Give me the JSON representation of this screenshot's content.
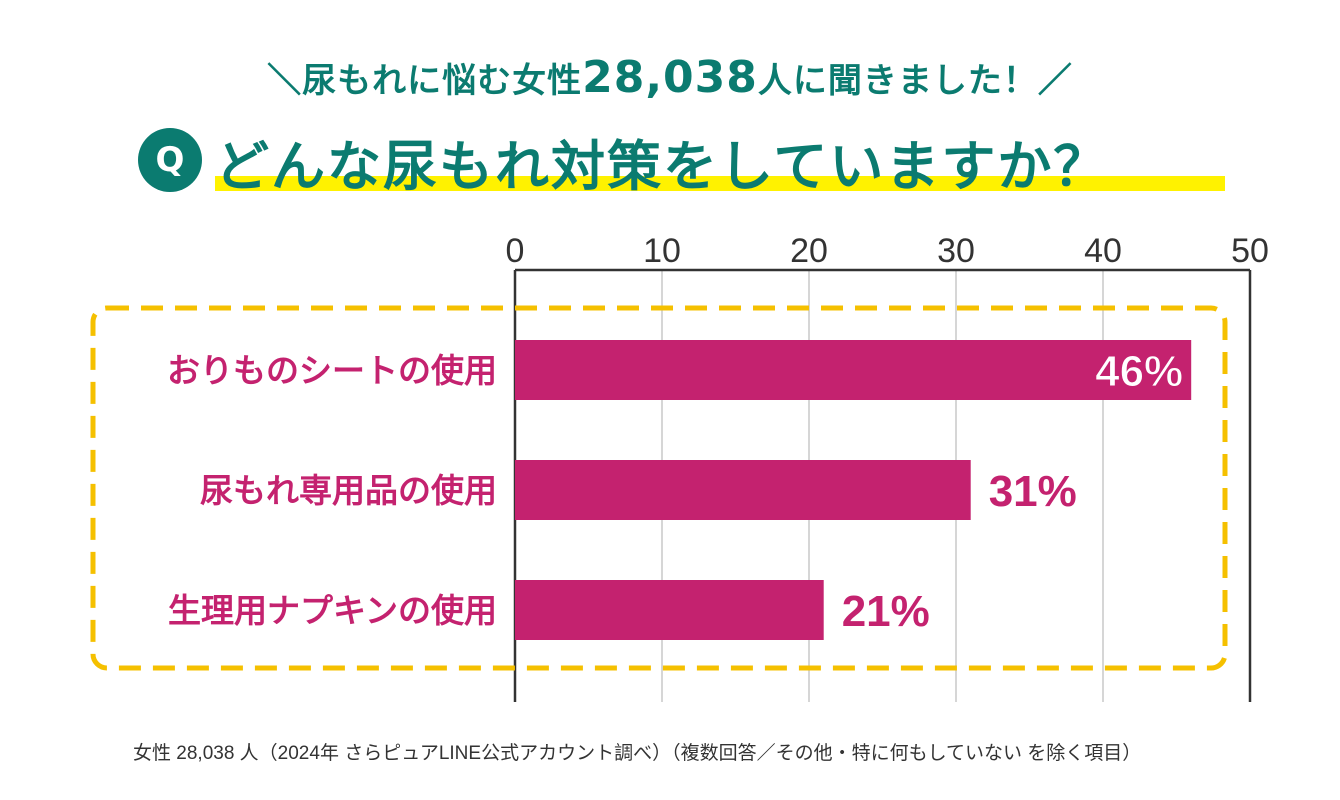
{
  "header": {
    "subtitle_pre": "＼尿もれに悩む女性",
    "subtitle_num": "28,038",
    "subtitle_post": "人に聞きました！／",
    "q_badge": "Q",
    "title": "どんな尿もれ対策をしていますか？"
  },
  "colors": {
    "teal": "#0b7b70",
    "bar": "#c4226f",
    "highlight": "#fff200",
    "dash": "#f5c000"
  },
  "chart_data": {
    "type": "bar",
    "orientation": "horizontal",
    "categories": [
      "おりものシートの使用",
      "尿もれ専用品の使用",
      "生理用ナプキンの使用"
    ],
    "values": [
      46,
      31,
      21
    ],
    "data_labels": [
      "46%",
      "31%",
      "21%"
    ],
    "xlim": [
      0,
      50
    ],
    "xticks": [
      "0",
      "10",
      "20",
      "30",
      "40",
      "50"
    ],
    "tick_values": [
      0,
      10,
      20,
      30,
      40,
      50
    ],
    "grid": true,
    "unit": "%"
  },
  "footnote": "女性 28,038 人（2024年 さらピュアLINE公式アカウント調べ）（複数回答／その他・特に何もしていない を除く項目）"
}
